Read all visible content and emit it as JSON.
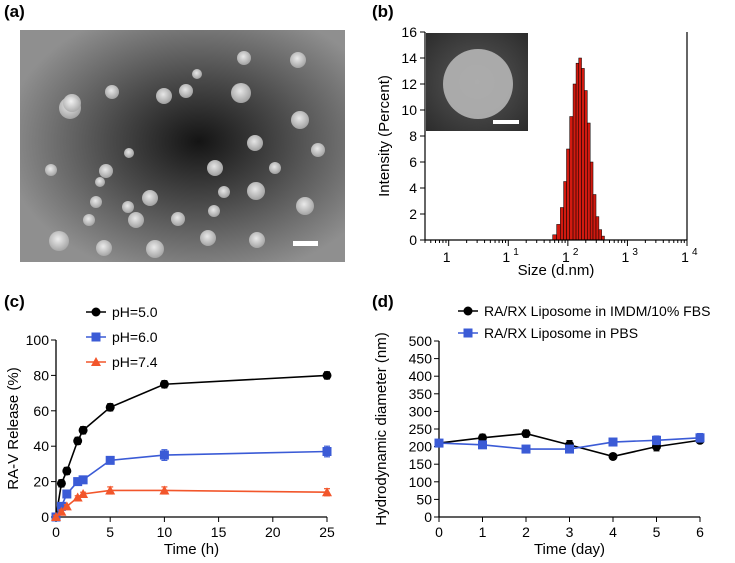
{
  "panels": {
    "a": {
      "label": "(a)"
    },
    "b": {
      "label": "(b)"
    },
    "c": {
      "label": "(c)"
    },
    "d": {
      "label": "(d)"
    }
  },
  "chart_data": [
    {
      "panel": "(b)",
      "type": "bar",
      "xlabel": "Size (d.nm)",
      "ylabel": "Intensity (Percent)",
      "x_scale": "log",
      "xlim": [
        0.4,
        10000
      ],
      "ylim": [
        0,
        16
      ],
      "x_ticks": [
        1,
        10,
        100,
        1000,
        10000
      ],
      "x_tick_labels": [
        {
          "base": "1",
          "exp": ""
        },
        {
          "base": "1",
          "exp": "1"
        },
        {
          "base": "1",
          "exp": "2"
        },
        {
          "base": "1",
          "exp": "3"
        },
        {
          "base": "1",
          "exp": "4"
        }
      ],
      "y_ticks": [
        0,
        2,
        4,
        6,
        8,
        10,
        12,
        14,
        16
      ],
      "color": "#d11a10",
      "x": [
        60,
        70,
        80,
        90,
        100,
        115,
        130,
        145,
        160,
        180,
        200,
        225,
        250,
        280,
        315,
        350,
        390
      ],
      "values": [
        0.4,
        1.2,
        2.5,
        4.5,
        7.0,
        9.5,
        12.0,
        13.6,
        14.0,
        13.2,
        11.5,
        9.0,
        6.0,
        3.5,
        1.8,
        0.8,
        0.3
      ]
    },
    {
      "panel": "(c)",
      "type": "line",
      "xlabel": "Time (h)",
      "ylabel": "RA-V Release (%)",
      "xlim": [
        0,
        25
      ],
      "ylim": [
        0,
        100
      ],
      "x_ticks": [
        0,
        5,
        10,
        15,
        20,
        25
      ],
      "y_ticks": [
        0,
        20,
        40,
        60,
        80,
        100
      ],
      "legend": "top-left",
      "series": [
        {
          "name": "pH=5.0",
          "color": "#000000",
          "marker": "circle",
          "x": [
            0,
            0.5,
            1,
            2,
            2.5,
            5,
            10,
            25
          ],
          "y": [
            0,
            19,
            26,
            43,
            49,
            62,
            75,
            80
          ],
          "err": [
            1,
            2,
            2,
            2,
            2,
            2,
            2,
            2
          ]
        },
        {
          "name": "pH=6.0",
          "color": "#3b5bd6",
          "marker": "square",
          "x": [
            0,
            0.5,
            1,
            2,
            2.5,
            5,
            10,
            25
          ],
          "y": [
            0,
            6,
            13,
            20,
            21,
            32,
            35,
            37
          ],
          "err": [
            1,
            1,
            1,
            2,
            2,
            2,
            3,
            3
          ]
        },
        {
          "name": "pH=7.4",
          "color": "#f2562b",
          "marker": "triangle",
          "x": [
            0,
            0.5,
            1,
            2,
            2.5,
            5,
            10,
            25
          ],
          "y": [
            0,
            3,
            6,
            11,
            13,
            15,
            15,
            14
          ],
          "err": [
            1,
            1,
            1,
            1,
            1,
            2,
            2,
            2
          ]
        }
      ]
    },
    {
      "panel": "(d)",
      "type": "line",
      "xlabel": "Time (day)",
      "ylabel": "Hydrodynamic diameter (nm)",
      "xlim": [
        0,
        6
      ],
      "ylim": [
        0,
        500
      ],
      "x_ticks": [
        0,
        1,
        2,
        3,
        4,
        5,
        6
      ],
      "y_ticks": [
        0,
        50,
        100,
        150,
        200,
        250,
        300,
        350,
        400,
        450,
        500
      ],
      "legend": "top",
      "series": [
        {
          "name": "RA/RX Liposome in IMDM/10% FBS",
          "color": "#000000",
          "marker": "circle",
          "x": [
            0,
            1,
            2,
            3,
            4,
            5,
            6
          ],
          "y": [
            210,
            225,
            237,
            205,
            172,
            200,
            218
          ],
          "err": [
            5,
            10,
            10,
            12,
            8,
            12,
            8
          ]
        },
        {
          "name": "RA/RX Liposome in PBS",
          "color": "#3b5bd6",
          "marker": "square",
          "x": [
            0,
            1,
            2,
            3,
            4,
            5,
            6
          ],
          "y": [
            210,
            205,
            193,
            193,
            213,
            218,
            225
          ],
          "err": [
            5,
            10,
            10,
            10,
            10,
            12,
            12
          ]
        }
      ]
    }
  ]
}
